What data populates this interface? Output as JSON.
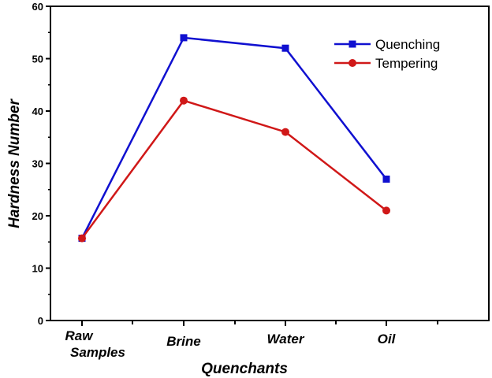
{
  "chart_data": {
    "type": "line",
    "title": "",
    "xlabel": "Quenchants",
    "ylabel": "Hardness Number",
    "categories": [
      "Raw Samples",
      "Brine",
      "Water",
      "Oil"
    ],
    "ylim": [
      0,
      60
    ],
    "yticks": [
      0,
      10,
      20,
      30,
      40,
      50,
      60
    ],
    "grid": false,
    "legend_position": "top-right",
    "series": [
      {
        "name": "Quenching",
        "color": "#1010d0",
        "marker": "square",
        "values": [
          15.7,
          54,
          52,
          27
        ]
      },
      {
        "name": "Tempering",
        "color": "#d01818",
        "marker": "circle",
        "values": [
          15.7,
          42,
          36,
          21
        ]
      }
    ]
  }
}
